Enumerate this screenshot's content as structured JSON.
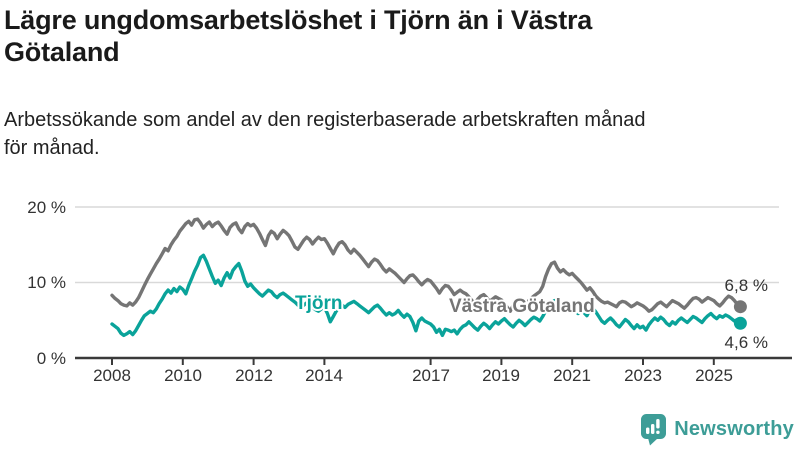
{
  "header": {
    "title": "Lägre ungdomsarbetslöshet i Tjörn än i Västra Götaland",
    "subtitle": "Arbetssökande som andel av den registerbaserade arbetskraften månad för månad."
  },
  "colors": {
    "tjorn": "#0aa39a",
    "vastra": "#757575",
    "grid": "#d9d9d9",
    "axis": "#3a3a3a",
    "tick_text": "#333333",
    "logo": "#3d9d97"
  },
  "chart_data": {
    "type": "line",
    "title": "Lägre ungdomsarbetslöshet i Tjörn än i Västra Götaland",
    "subtitle": "Arbetssökande som andel av den registerbaserade arbetskraften månad för månad.",
    "x_start_year": 2008,
    "x_step_months": 1,
    "x_end": "2025-10",
    "ylim": [
      0,
      20
    ],
    "grid": "horizontal",
    "legend_position": "inline-labels",
    "y_axis": {
      "tick_values": [
        20,
        10,
        0
      ],
      "tick_labels": [
        "20 %",
        "10 %",
        "0 %"
      ]
    },
    "x_axis": {
      "tick_years": [
        2008,
        2010,
        2012,
        2014,
        2017,
        2019,
        2021,
        2023,
        2025
      ],
      "tick_labels": [
        "2008",
        "2010",
        "2012",
        "2014",
        "2017",
        "2019",
        "2021",
        "2023",
        "2025"
      ]
    },
    "series": [
      {
        "name": "Västra Götaland",
        "color_key": "vastra",
        "end_label": "6,8 %",
        "end_value": 6.8,
        "values": [
          8.3,
          7.9,
          7.6,
          7.2,
          7.0,
          6.9,
          7.3,
          7.0,
          7.4,
          8.0,
          8.8,
          9.6,
          10.4,
          11.1,
          11.8,
          12.5,
          13.1,
          13.8,
          14.5,
          14.2,
          15.0,
          15.6,
          16.1,
          16.8,
          17.3,
          17.8,
          18.1,
          17.6,
          18.3,
          18.4,
          17.9,
          17.2,
          17.7,
          18.0,
          17.4,
          17.8,
          18.0,
          17.5,
          16.9,
          16.4,
          17.3,
          17.7,
          17.9,
          17.1,
          16.6,
          17.4,
          17.8,
          17.5,
          17.7,
          17.2,
          16.5,
          15.7,
          14.9,
          16.2,
          16.8,
          16.5,
          15.8,
          16.4,
          16.9,
          16.6,
          16.2,
          15.5,
          14.7,
          14.4,
          15.0,
          15.6,
          16.0,
          15.7,
          15.1,
          15.6,
          16.0,
          15.7,
          15.8,
          15.2,
          14.5,
          13.8,
          14.6,
          15.2,
          15.4,
          15.0,
          14.3,
          13.9,
          14.4,
          14.0,
          13.6,
          13.1,
          12.6,
          12.1,
          12.7,
          13.1,
          12.9,
          12.4,
          11.8,
          11.4,
          11.8,
          11.5,
          11.2,
          10.8,
          10.4,
          10.0,
          10.5,
          10.9,
          11.0,
          10.6,
          10.1,
          9.7,
          10.1,
          10.4,
          10.2,
          9.7,
          9.2,
          8.6,
          9.2,
          9.6,
          9.5,
          9.0,
          8.4,
          8.7,
          9.0,
          8.7,
          8.5,
          8.1,
          7.6,
          7.2,
          7.8,
          8.2,
          8.4,
          8.0,
          7.5,
          7.8,
          8.1,
          7.9,
          7.7,
          7.3,
          6.7,
          6.2,
          7.0,
          7.6,
          7.9,
          7.5,
          7.1,
          7.5,
          7.9,
          8.2,
          8.5,
          8.8,
          9.5,
          10.8,
          11.8,
          12.5,
          12.7,
          11.9,
          11.4,
          11.7,
          11.3,
          11.0,
          11.2,
          10.8,
          10.4,
          10.0,
          9.5,
          9.0,
          9.3,
          8.8,
          8.2,
          7.8,
          7.5,
          7.3,
          7.4,
          7.2,
          7.0,
          6.8,
          7.3,
          7.5,
          7.4,
          7.1,
          6.8,
          7.0,
          7.3,
          7.1,
          6.9,
          6.6,
          6.2,
          6.4,
          6.8,
          7.2,
          7.4,
          7.1,
          6.8,
          7.2,
          7.6,
          7.4,
          7.2,
          6.9,
          6.6,
          7.0,
          7.5,
          7.9,
          8.0,
          7.8,
          7.4,
          7.7,
          8.0,
          7.8,
          7.6,
          7.2,
          6.9,
          7.3,
          7.8,
          8.2,
          8.0,
          7.6,
          7.1,
          6.8
        ]
      },
      {
        "name": "Tjörn",
        "color_key": "tjorn",
        "end_label": "4,6 %",
        "end_value": 4.6,
        "values": [
          4.5,
          4.2,
          3.9,
          3.3,
          3.0,
          3.2,
          3.5,
          3.1,
          3.6,
          4.3,
          5.0,
          5.6,
          5.9,
          6.2,
          6.0,
          6.5,
          7.2,
          7.8,
          8.5,
          9.0,
          8.6,
          9.2,
          8.8,
          9.4,
          9.1,
          8.5,
          9.6,
          10.5,
          11.5,
          12.3,
          13.3,
          13.6,
          12.8,
          11.8,
          10.8,
          9.9,
          10.3,
          9.6,
          10.6,
          11.3,
          10.6,
          11.6,
          12.1,
          12.5,
          11.5,
          10.2,
          9.5,
          9.8,
          9.3,
          8.9,
          8.5,
          8.2,
          8.6,
          9.0,
          8.8,
          8.3,
          8.0,
          8.4,
          8.6,
          8.3,
          8.0,
          7.7,
          7.4,
          7.0,
          6.7,
          7.0,
          7.3,
          7.0,
          6.7,
          6.4,
          6.2,
          6.5,
          6.7,
          5.9,
          4.8,
          5.5,
          6.2,
          6.7,
          7.0,
          6.7,
          7.1,
          7.3,
          7.5,
          7.2,
          6.9,
          6.6,
          6.3,
          6.0,
          6.4,
          6.8,
          7.0,
          6.6,
          6.1,
          5.7,
          6.0,
          5.7,
          5.9,
          6.3,
          5.8,
          5.4,
          5.8,
          5.5,
          4.7,
          3.6,
          4.9,
          5.3,
          4.9,
          4.7,
          4.5,
          4.1,
          3.4,
          3.8,
          3.0,
          3.8,
          3.7,
          3.5,
          3.7,
          3.2,
          3.8,
          4.2,
          4.4,
          4.8,
          4.4,
          4.0,
          3.7,
          4.2,
          4.6,
          4.3,
          3.9,
          4.4,
          4.8,
          4.5,
          4.9,
          5.2,
          4.8,
          4.4,
          4.1,
          4.6,
          5.0,
          4.7,
          4.3,
          4.7,
          5.1,
          5.4,
          5.2,
          4.9,
          5.5,
          6.2,
          6.7,
          7.3,
          7.6,
          7.2,
          6.8,
          7.1,
          6.7,
          6.4,
          6.6,
          6.2,
          5.9,
          6.3,
          6.0,
          5.6,
          6.4,
          6.6,
          6.1,
          5.5,
          4.9,
          4.6,
          5.0,
          5.3,
          4.9,
          4.4,
          4.1,
          4.6,
          5.1,
          4.8,
          4.3,
          3.9,
          4.4,
          4.0,
          4.2,
          3.7,
          4.4,
          4.9,
          5.3,
          5.0,
          5.4,
          5.1,
          4.6,
          4.3,
          4.8,
          4.5,
          5.0,
          5.3,
          5.0,
          4.7,
          5.1,
          5.5,
          5.3,
          5.0,
          4.7,
          5.2,
          5.6,
          5.9,
          5.5,
          5.2,
          5.6,
          5.4,
          5.7,
          5.5,
          5.2,
          4.9,
          5.1,
          4.6
        ]
      }
    ]
  },
  "logo": {
    "text": "Newsworthy"
  }
}
